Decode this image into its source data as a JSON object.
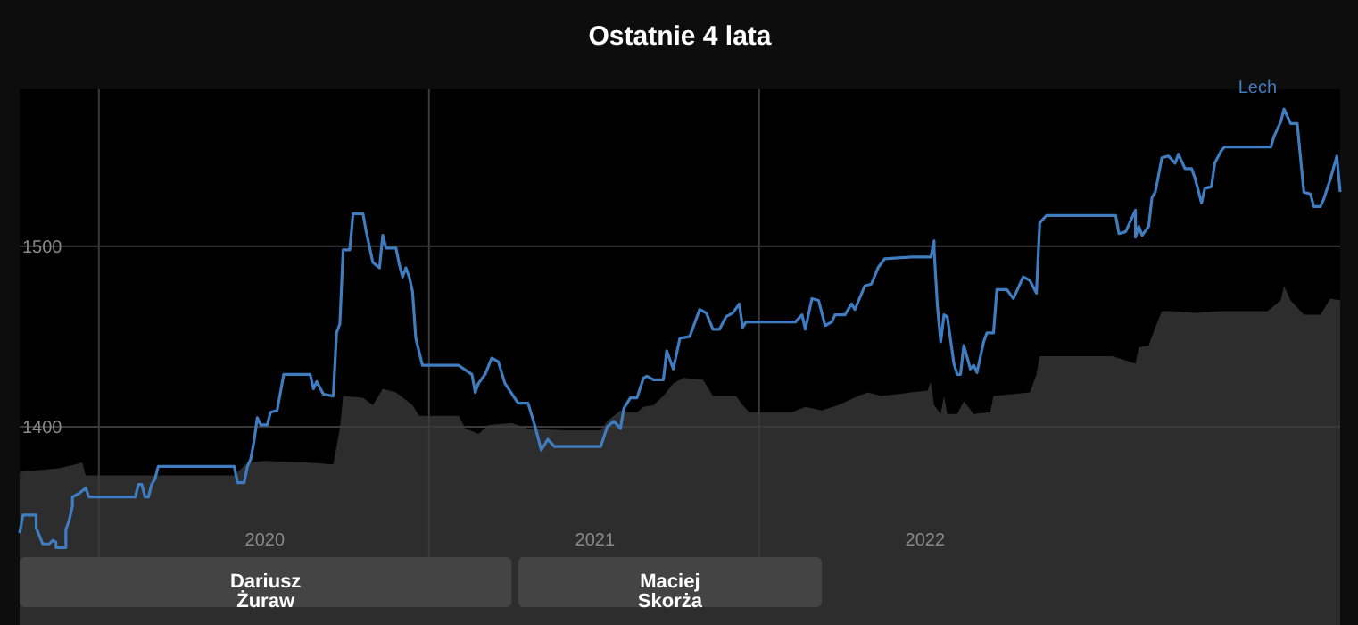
{
  "chart_data": {
    "type": "line",
    "title": "Ostatnie 4 lata",
    "xlim": [
      2019.76,
      2023.76
    ],
    "xticks": [
      {
        "value": 2020,
        "label": null
      },
      {
        "value": 2020.5,
        "label": "2020"
      },
      {
        "value": 2021,
        "label": null
      },
      {
        "value": 2021.5,
        "label": "2021"
      },
      {
        "value": 2022,
        "label": null
      },
      {
        "value": 2022.5,
        "label": "2022"
      }
    ],
    "ylim": [
      1300,
      1587
    ],
    "yticks": [
      1400,
      1500
    ],
    "grid": true,
    "bands": [
      {
        "axis": "x",
        "from": 2019.76,
        "to": 2021.25,
        "label": "Dariusz Żuraw",
        "color": "#444444"
      },
      {
        "axis": "x",
        "from": 2021.27,
        "to": 2022.19,
        "label": "Maciej Skorża",
        "color": "#444444"
      }
    ],
    "series": [
      {
        "type": "area",
        "color": "#2d2d2d",
        "x": [
          2019.76,
          2019.88,
          2019.95,
          2019.96,
          2020.41,
          2020.45,
          2020.5,
          2020.64,
          2020.71,
          2020.73,
          2020.74,
          2020.8,
          2020.83,
          2020.86,
          2020.9,
          2020.95,
          2020.97,
          2021.09,
          2021.11,
          2021.15,
          2021.18,
          2021.25,
          2021.3,
          2021.41,
          2021.52,
          2021.54,
          2021.58,
          2021.6,
          2021.63,
          2021.65,
          2021.68,
          2021.71,
          2021.74,
          2021.77,
          2021.83,
          2021.86,
          2021.93,
          2021.95,
          2021.97,
          2022.1,
          2022.14,
          2022.19,
          2022.24,
          2022.3,
          2022.33,
          2022.37,
          2022.46,
          2022.51,
          2022.52,
          2022.53,
          2022.55,
          2022.56,
          2022.57,
          2022.6,
          2022.62,
          2022.65,
          2022.7,
          2022.71,
          2022.82,
          2022.84,
          2022.85,
          2023.07,
          2023.14,
          2023.15,
          2023.18,
          2023.2,
          2023.22,
          2023.25,
          2023.32,
          2023.4,
          2023.54,
          2023.58,
          2023.59,
          2023.61,
          2023.65,
          2023.7,
          2023.73,
          2023.76
        ],
        "values": [
          1375,
          1377,
          1380,
          1373,
          1373,
          1380,
          1381,
          1380,
          1379,
          1399,
          1417,
          1416,
          1412,
          1421,
          1419,
          1412,
          1406,
          1406,
          1399,
          1396,
          1401,
          1402,
          1399,
          1398,
          1398,
          1403,
          1409,
          1408,
          1408,
          1411,
          1412,
          1417,
          1424,
          1427,
          1426,
          1417,
          1417,
          1412,
          1408,
          1408,
          1411,
          1409,
          1412,
          1417,
          1419,
          1417,
          1419,
          1420,
          1425,
          1412,
          1407,
          1417,
          1407,
          1407,
          1414,
          1407,
          1408,
          1417,
          1419,
          1429,
          1439,
          1439,
          1435,
          1444,
          1445,
          1455,
          1464,
          1464,
          1463,
          1464,
          1464,
          1470,
          1478,
          1470,
          1462,
          1462,
          1471,
          1470
        ]
      },
      {
        "name": "Lech",
        "color": "#3f7cc0",
        "x": [
          2019.76,
          2019.77,
          2019.81,
          2019.81,
          2019.83,
          2019.85,
          2019.86,
          2019.87,
          2019.87,
          2019.9,
          2019.9,
          2019.91,
          2019.92,
          2019.92,
          2019.94,
          2019.96,
          2019.97,
          2020.11,
          2020.12,
          2020.13,
          2020.14,
          2020.15,
          2020.16,
          2020.17,
          2020.18,
          2020.41,
          2020.42,
          2020.44,
          2020.45,
          2020.46,
          2020.47,
          2020.48,
          2020.49,
          2020.51,
          2020.52,
          2020.54,
          2020.55,
          2020.56,
          2020.64,
          2020.65,
          2020.66,
          2020.68,
          2020.71,
          2020.72,
          2020.73,
          2020.74,
          2020.76,
          2020.77,
          2020.8,
          2020.81,
          2020.83,
          2020.85,
          2020.86,
          2020.87,
          2020.9,
          2020.91,
          2020.92,
          2020.93,
          2020.94,
          2020.95,
          2020.96,
          2020.98,
          2021.09,
          2021.13,
          2021.14,
          2021.15,
          2021.17,
          2021.19,
          2021.21,
          2021.23,
          2021.27,
          2021.3,
          2021.32,
          2021.32,
          2021.34,
          2021.36,
          2021.38,
          2021.52,
          2021.54,
          2021.56,
          2021.58,
          2021.59,
          2021.61,
          2021.63,
          2021.65,
          2021.66,
          2021.68,
          2021.71,
          2021.72,
          2021.74,
          2021.76,
          2021.79,
          2021.82,
          2021.84,
          2021.86,
          2021.88,
          2021.9,
          2021.92,
          2021.94,
          2021.95,
          2021.96,
          2022.11,
          2022.13,
          2022.14,
          2022.16,
          2022.18,
          2022.2,
          2022.22,
          2022.23,
          2022.26,
          2022.28,
          2022.29,
          2022.32,
          2022.34,
          2022.36,
          2022.38,
          2022.46,
          2022.52,
          2022.53,
          2022.53,
          2022.54,
          2022.55,
          2022.56,
          2022.57,
          2022.59,
          2022.6,
          2022.61,
          2022.62,
          2022.64,
          2022.65,
          2022.66,
          2022.68,
          2022.69,
          2022.71,
          2022.72,
          2022.75,
          2022.77,
          2022.8,
          2022.82,
          2022.84,
          2022.85,
          2022.87,
          2023.08,
          2023.09,
          2023.11,
          2023.14,
          2023.14,
          2023.15,
          2023.16,
          2023.18,
          2023.19,
          2023.2,
          2023.22,
          2023.24,
          2023.26,
          2023.27,
          2023.29,
          2023.31,
          2023.32,
          2023.34,
          2023.35,
          2023.37,
          2023.38,
          2023.4,
          2023.41,
          2023.55,
          2023.56,
          2023.58,
          2023.59,
          2023.61,
          2023.63,
          2023.65,
          2023.67,
          2023.68,
          2023.7,
          2023.71,
          2023.73,
          2023.75,
          2023.76
        ],
        "values": [
          1341,
          1351,
          1351,
          1344,
          1335,
          1335,
          1337,
          1336,
          1333,
          1333,
          1343,
          1348,
          1356,
          1361,
          1363,
          1366,
          1361,
          1361,
          1368,
          1368,
          1361,
          1361,
          1368,
          1371,
          1378,
          1378,
          1369,
          1369,
          1378,
          1382,
          1392,
          1405,
          1401,
          1401,
          1408,
          1409,
          1419,
          1429,
          1429,
          1421,
          1425,
          1418,
          1417,
          1452,
          1457,
          1498,
          1498,
          1518,
          1518,
          1508,
          1491,
          1488,
          1506,
          1499,
          1499,
          1490,
          1483,
          1488,
          1483,
          1475,
          1449,
          1434,
          1434,
          1429,
          1419,
          1424,
          1429,
          1438,
          1436,
          1424,
          1413,
          1413,
          1401,
          1401,
          1387,
          1393,
          1389,
          1389,
          1400,
          1403,
          1399,
          1410,
          1416,
          1416,
          1427,
          1428,
          1426,
          1426,
          1442,
          1432,
          1449,
          1450,
          1465,
          1463,
          1454,
          1454,
          1461,
          1463,
          1468,
          1455,
          1458,
          1458,
          1462,
          1454,
          1471,
          1470,
          1456,
          1458,
          1462,
          1462,
          1468,
          1465,
          1478,
          1479,
          1488,
          1493,
          1494,
          1494,
          1503,
          1498,
          1467,
          1447,
          1462,
          1461,
          1435,
          1429,
          1429,
          1445,
          1432,
          1434,
          1430,
          1447,
          1452,
          1452,
          1476,
          1476,
          1471,
          1483,
          1481,
          1474,
          1513,
          1517,
          1517,
          1507,
          1508,
          1520,
          1505,
          1511,
          1506,
          1511,
          1527,
          1530,
          1549,
          1550,
          1546,
          1551,
          1543,
          1543,
          1538,
          1524,
          1532,
          1533,
          1546,
          1553,
          1555,
          1555,
          1561,
          1569,
          1576,
          1568,
          1568,
          1530,
          1529,
          1522,
          1522,
          1526,
          1537,
          1550,
          1530
        ]
      }
    ]
  }
}
